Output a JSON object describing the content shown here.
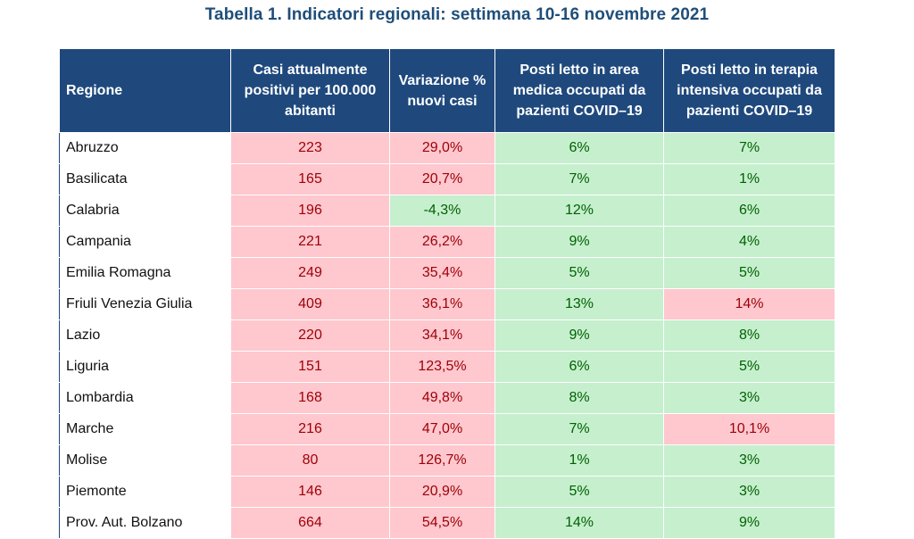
{
  "title": "Tabella 1. Indicatori regionali: settimana 10-16 novembre 2021",
  "table": {
    "headers": [
      "Regione",
      "Casi attualmente positivi per 100.000 abitanti",
      "Variazione % nuovi casi",
      "Posti letto in area medica occupati da pazienti COVID–19",
      "Posti letto in terapia intensiva occupati da pazienti COVID–19"
    ],
    "colors": {
      "header_bg": "#1f497d",
      "alert_bg": "#ffc7ce",
      "alert_text": "#9c0006",
      "ok_bg": "#c6efce",
      "ok_text": "#006100"
    },
    "rows": [
      {
        "region": "Abruzzo",
        "cells": [
          {
            "v": "223",
            "s": "red"
          },
          {
            "v": "29,0%",
            "s": "red"
          },
          {
            "v": "6%",
            "s": "green"
          },
          {
            "v": "7%",
            "s": "green"
          }
        ]
      },
      {
        "region": "Basilicata",
        "cells": [
          {
            "v": "165",
            "s": "red"
          },
          {
            "v": "20,7%",
            "s": "red"
          },
          {
            "v": "7%",
            "s": "green"
          },
          {
            "v": "1%",
            "s": "green"
          }
        ]
      },
      {
        "region": "Calabria",
        "cells": [
          {
            "v": "196",
            "s": "red"
          },
          {
            "v": "-4,3%",
            "s": "green"
          },
          {
            "v": "12%",
            "s": "green"
          },
          {
            "v": "6%",
            "s": "green"
          }
        ]
      },
      {
        "region": "Campania",
        "cells": [
          {
            "v": "221",
            "s": "red"
          },
          {
            "v": "26,2%",
            "s": "red"
          },
          {
            "v": "9%",
            "s": "green"
          },
          {
            "v": "4%",
            "s": "green"
          }
        ]
      },
      {
        "region": "Emilia Romagna",
        "cells": [
          {
            "v": "249",
            "s": "red"
          },
          {
            "v": "35,4%",
            "s": "red"
          },
          {
            "v": "5%",
            "s": "green"
          },
          {
            "v": "5%",
            "s": "green"
          }
        ]
      },
      {
        "region": "Friuli Venezia Giulia",
        "cells": [
          {
            "v": "409",
            "s": "red"
          },
          {
            "v": "36,1%",
            "s": "red"
          },
          {
            "v": "13%",
            "s": "green"
          },
          {
            "v": "14%",
            "s": "red"
          }
        ]
      },
      {
        "region": "Lazio",
        "cells": [
          {
            "v": "220",
            "s": "red"
          },
          {
            "v": "34,1%",
            "s": "red"
          },
          {
            "v": "9%",
            "s": "green"
          },
          {
            "v": "8%",
            "s": "green"
          }
        ]
      },
      {
        "region": "Liguria",
        "cells": [
          {
            "v": "151",
            "s": "red"
          },
          {
            "v": "123,5%",
            "s": "red"
          },
          {
            "v": "6%",
            "s": "green"
          },
          {
            "v": "5%",
            "s": "green"
          }
        ]
      },
      {
        "region": "Lombardia",
        "cells": [
          {
            "v": "168",
            "s": "red"
          },
          {
            "v": "49,8%",
            "s": "red"
          },
          {
            "v": "8%",
            "s": "green"
          },
          {
            "v": "3%",
            "s": "green"
          }
        ]
      },
      {
        "region": "Marche",
        "cells": [
          {
            "v": "216",
            "s": "red"
          },
          {
            "v": "47,0%",
            "s": "red"
          },
          {
            "v": "7%",
            "s": "green"
          },
          {
            "v": "10,1%",
            "s": "red"
          }
        ]
      },
      {
        "region": "Molise",
        "cells": [
          {
            "v": "80",
            "s": "red"
          },
          {
            "v": "126,7%",
            "s": "red"
          },
          {
            "v": "1%",
            "s": "green"
          },
          {
            "v": "3%",
            "s": "green"
          }
        ]
      },
      {
        "region": "Piemonte",
        "cells": [
          {
            "v": "146",
            "s": "red"
          },
          {
            "v": "20,9%",
            "s": "red"
          },
          {
            "v": "5%",
            "s": "green"
          },
          {
            "v": "3%",
            "s": "green"
          }
        ]
      },
      {
        "region": "Prov. Aut. Bolzano",
        "cells": [
          {
            "v": "664",
            "s": "red"
          },
          {
            "v": "54,5%",
            "s": "red"
          },
          {
            "v": "14%",
            "s": "green"
          },
          {
            "v": "9%",
            "s": "green"
          }
        ]
      }
    ]
  }
}
